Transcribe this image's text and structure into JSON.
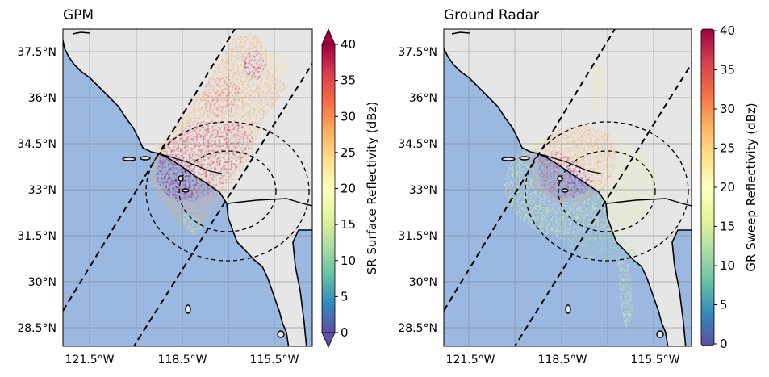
{
  "panels": [
    {
      "title": "GPM",
      "colorbar_label": "SR Surface Reflectivity (dBz)",
      "colorbar_extend": "both"
    },
    {
      "title": "Ground Radar",
      "colorbar_label": "GR Sweep Reflectivity (dBz)",
      "colorbar_extend": "neither"
    }
  ],
  "lat_labels": [
    "37.5°N",
    "36°N",
    "34.5°N",
    "33°N",
    "31.5°N",
    "30°N",
    "28.5°N"
  ],
  "lon_labels": [
    "121.5°W",
    "118.5°W",
    "115.5°W"
  ],
  "colorbar_ticks": [
    "0",
    "5",
    "10",
    "15",
    "20",
    "25",
    "30",
    "35",
    "40"
  ],
  "colormap": "Spectral_r",
  "colors": {
    "ocean": "#9ab8e0",
    "land": "#e6e6e6",
    "coastline": "#000000",
    "grid": "#808080"
  }
}
